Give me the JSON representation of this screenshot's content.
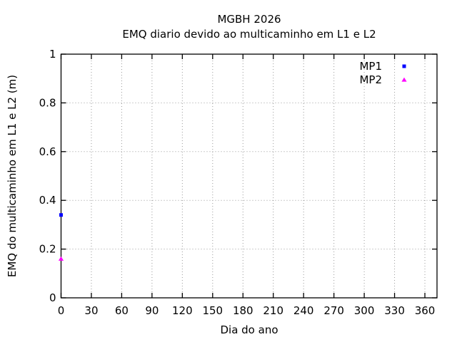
{
  "chart_data": {
    "type": "scatter",
    "title": "MGBH 2026",
    "subtitle": "EMQ diario devido ao multicaminho em L1 e L2",
    "xlabel": "Dia do ano",
    "ylabel": "EMQ do multicaminho em L1 e L2 (m)",
    "xlim": [
      0,
      372
    ],
    "ylim": [
      0,
      1
    ],
    "x_ticks": [
      0,
      30,
      60,
      90,
      120,
      150,
      180,
      210,
      240,
      270,
      300,
      330,
      360
    ],
    "x_tick_labels": [
      "0",
      "30",
      "60",
      "90",
      "120",
      "150",
      "180",
      "210",
      "240",
      "270",
      "300",
      "330",
      "360"
    ],
    "y_ticks": [
      0,
      0.2,
      0.4,
      0.6,
      0.8,
      1
    ],
    "y_tick_labels": [
      "0",
      "0.2",
      "0.4",
      "0.6",
      "0.8",
      "1"
    ],
    "grid": "dotted",
    "grid_color": "#9a9a9a",
    "axis_color": "#000000",
    "background_color": "#ffffff",
    "legend_position": "top-right",
    "series": [
      {
        "name": "MP1",
        "marker": "square",
        "color": "#0000ff",
        "points": [
          {
            "x": 0,
            "y": 0.34
          }
        ]
      },
      {
        "name": "MP2",
        "marker": "triangle",
        "color": "#ff00ff",
        "points": [
          {
            "x": 0,
            "y": 0.16
          }
        ]
      }
    ]
  }
}
